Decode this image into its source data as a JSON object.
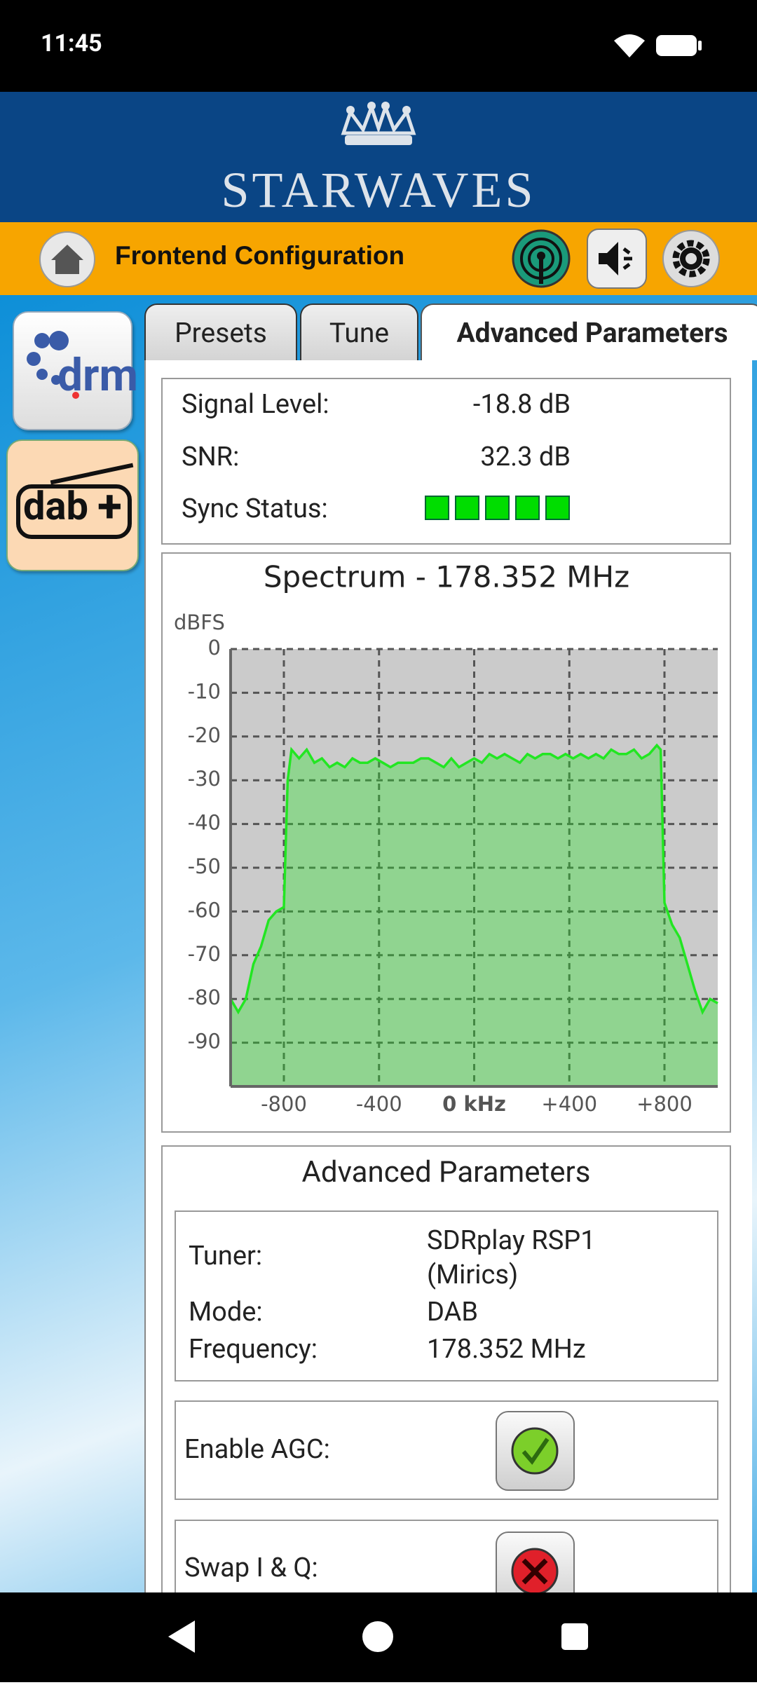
{
  "status_bar": {
    "time": "11:45"
  },
  "header": {
    "brand": "STARWAVES",
    "title": "Frontend Configuration"
  },
  "sidebar": {
    "drm": "drm",
    "dab": "dab"
  },
  "tabs": [
    "Presets",
    "Tune",
    "Advanced Parameters"
  ],
  "signal": {
    "rows": [
      {
        "label": "Signal Level:",
        "value": "-18.8 dB"
      },
      {
        "label": "SNR:",
        "value": "32.3 dB"
      },
      {
        "label": "Sync Status:"
      }
    ]
  },
  "chart_data": {
    "type": "area",
    "title": "Spectrum - 178.352 MHz",
    "y_label": "dBFS",
    "x": [
      -1024,
      -992,
      -960,
      -928,
      -896,
      -864,
      -832,
      -800,
      -784,
      -768,
      -736,
      -704,
      -672,
      -640,
      -608,
      -576,
      -544,
      -512,
      -480,
      -448,
      -416,
      -384,
      -352,
      -320,
      -288,
      -256,
      -224,
      -192,
      -160,
      -128,
      -96,
      -64,
      -32,
      0,
      32,
      64,
      96,
      128,
      160,
      192,
      224,
      256,
      288,
      320,
      352,
      384,
      416,
      448,
      480,
      512,
      544,
      576,
      608,
      640,
      672,
      704,
      736,
      768,
      784,
      800,
      832,
      864,
      896,
      928,
      960,
      992,
      1024
    ],
    "values": [
      -80,
      -83,
      -80,
      -72,
      -68,
      -62,
      -60,
      -59,
      -30,
      -23,
      -25,
      -23,
      -26,
      -25,
      -27,
      -26,
      -27,
      -25,
      -26,
      -26,
      -25,
      -26,
      -27,
      -26,
      -26,
      -26,
      -25,
      -25,
      -26,
      -27,
      -25,
      -27,
      -26,
      -25,
      -26,
      -24,
      -25,
      -24,
      -25,
      -26,
      -24,
      -25,
      -24,
      -24,
      -25,
      -24,
      -25,
      -24,
      -25,
      -24,
      -25,
      -23,
      -24,
      -24,
      -23,
      -25,
      -24,
      -22,
      -23,
      -58,
      -63,
      -66,
      -72,
      -78,
      -83,
      -80,
      -81
    ],
    "xlim": [
      -1024,
      1024
    ],
    "ylim": [
      -100,
      0
    ],
    "xticks": [
      -800,
      -400,
      {
        "value": 0,
        "label": "0 kHz"
      },
      {
        "value": 400,
        "label": "+400"
      },
      {
        "value": 800,
        "label": "+800"
      }
    ],
    "yticks": [
      0,
      -10,
      -20,
      -30,
      -40,
      -50,
      -60,
      -70,
      -80,
      -90
    ],
    "grid": true,
    "color": "#22e622"
  },
  "advanced": {
    "title": "Advanced Parameters",
    "rows": [
      {
        "label": "Tuner:",
        "value": "SDRplay RSP1 (Mirics)"
      },
      {
        "label": "Mode:",
        "value": "DAB"
      },
      {
        "label": "Frequency:",
        "value": "178.352 MHz"
      }
    ],
    "toggles": [
      {
        "label": "Enable AGC:"
      },
      {
        "label": "Swap I & Q:"
      }
    ]
  }
}
